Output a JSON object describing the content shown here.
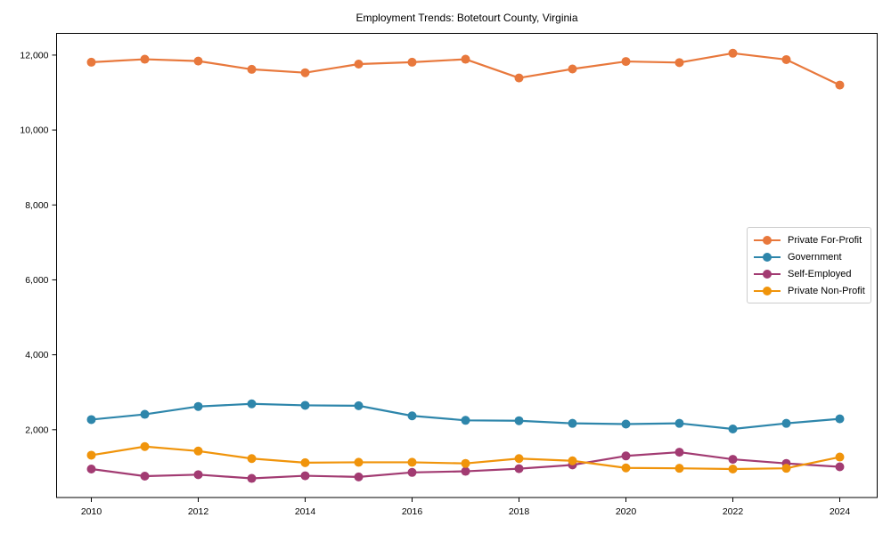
{
  "page": {
    "title": "Employment Trends: Botetourt County, Virginia"
  },
  "chart_data": {
    "type": "line",
    "title": "Employment Trends: Botetourt County, Virginia",
    "x": [
      2010,
      2011,
      2012,
      2013,
      2014,
      2015,
      2016,
      2017,
      2018,
      2019,
      2020,
      2021,
      2022,
      2023,
      2024
    ],
    "series": [
      {
        "name": "Private For-Profit",
        "color": "#E8783C",
        "values": [
          11810,
          11890,
          11840,
          11620,
          11530,
          11760,
          11810,
          11890,
          11390,
          11630,
          11830,
          11800,
          12050,
          11880,
          11200
        ]
      },
      {
        "name": "Government",
        "color": "#2E86AB",
        "values": [
          2270,
          2410,
          2620,
          2690,
          2650,
          2640,
          2370,
          2250,
          2240,
          2170,
          2150,
          2170,
          2020,
          2170,
          2290
        ]
      },
      {
        "name": "Self-Employed",
        "color": "#A23B72",
        "values": [
          950,
          760,
          800,
          700,
          770,
          740,
          860,
          890,
          960,
          1060,
          1300,
          1400,
          1210,
          1100,
          1010
        ]
      },
      {
        "name": "Private Non-Profit",
        "color": "#F0940B",
        "values": [
          1320,
          1550,
          1430,
          1230,
          1120,
          1130,
          1130,
          1100,
          1230,
          1170,
          980,
          970,
          950,
          970,
          1270
        ]
      }
    ],
    "xlabel": "",
    "ylabel": "",
    "xlim": [
      2009.35,
      2024.7
    ],
    "ylim": [
      190,
      12580
    ],
    "xticks": {
      "values": [
        2010,
        2012,
        2014,
        2016,
        2018,
        2020,
        2022,
        2024
      ],
      "labels": [
        "2010",
        "2012",
        "2014",
        "2016",
        "2018",
        "2020",
        "2022",
        "2024"
      ]
    },
    "yticks": {
      "values": [
        2000,
        4000,
        6000,
        8000,
        10000,
        12000
      ],
      "labels": [
        "2,000",
        "4,000",
        "6,000",
        "8,000",
        "10,000",
        "12,000"
      ]
    },
    "grid": false,
    "legend": {
      "position": "center right"
    }
  }
}
